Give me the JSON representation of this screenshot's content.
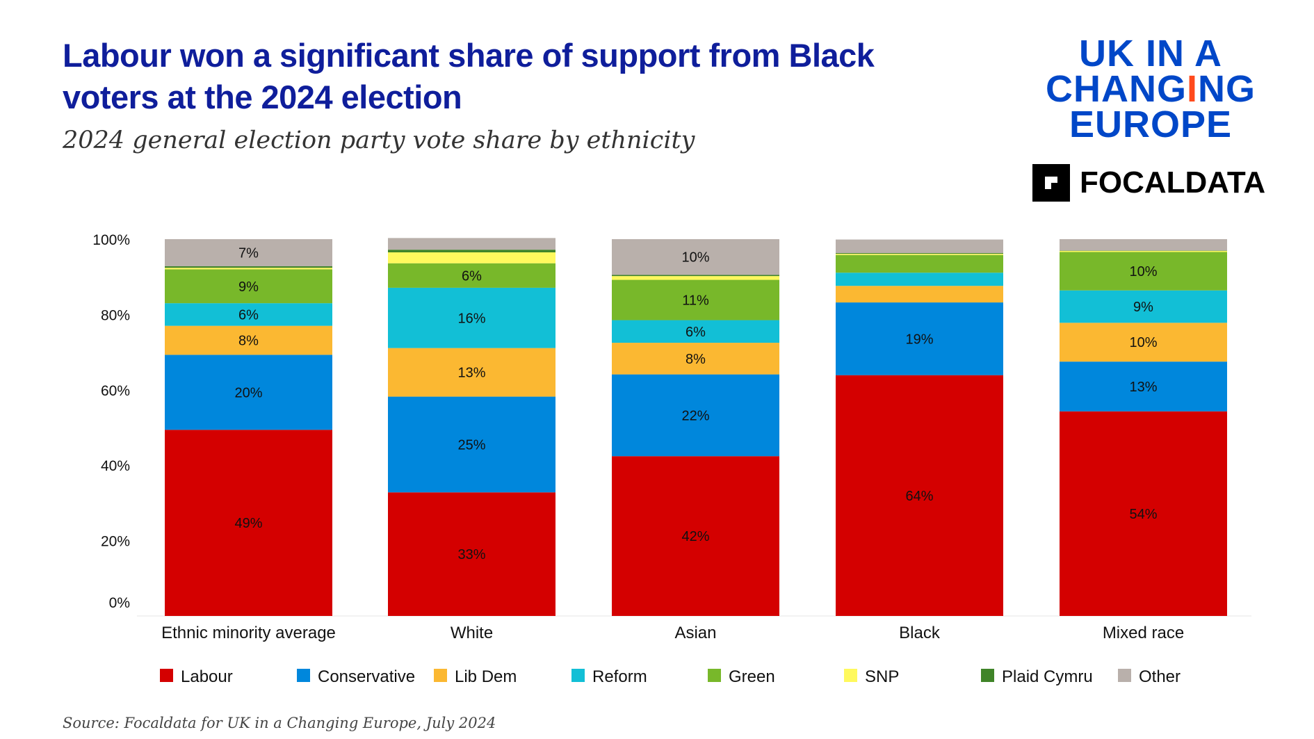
{
  "header": {
    "title": "Labour won a significant share of support from Black voters at the 2024 election",
    "subtitle": "2024 general election party vote share by ethnicity"
  },
  "logos": {
    "ukice": "UK IN A CHANGING EUROPE",
    "focaldata": "FOCALDATA"
  },
  "source": "Source:  Focaldata for UK in a Changing Europe, July 2024",
  "chart_data": {
    "type": "bar",
    "stacked": true,
    "title": "",
    "xlabel": "",
    "ylabel": "",
    "ylim": [
      0,
      100
    ],
    "yticks": [
      "0%",
      "20%",
      "40%",
      "60%",
      "80%",
      "100%"
    ],
    "grid": false,
    "legend_position": "bottom",
    "categories": [
      "Ethnic minority average",
      "White",
      "Asian",
      "Black",
      "Mixed race"
    ],
    "series": [
      {
        "name": "Labour",
        "color": "#d40000",
        "values": [
          49.4,
          32.8,
          42.4,
          63.9,
          54.3
        ],
        "labels": [
          "49%",
          "33%",
          "42%",
          "64%",
          "54%"
        ]
      },
      {
        "name": "Conservative",
        "color": "#0087dc",
        "values": [
          19.9,
          25.4,
          21.7,
          19.3,
          13.2
        ],
        "labels": [
          "20%",
          "25%",
          "22%",
          "19%",
          "13%"
        ]
      },
      {
        "name": "Lib Dem",
        "color": "#fbb832",
        "values": [
          7.7,
          12.9,
          8.4,
          4.4,
          10.3
        ],
        "labels": [
          "8%",
          "13%",
          "8%",
          "",
          "10%"
        ]
      },
      {
        "name": "Reform",
        "color": "#12bfd6",
        "values": [
          6.0,
          16.0,
          6.0,
          3.5,
          8.6
        ],
        "labels": [
          "6%",
          "16%",
          "6%",
          "",
          "9%"
        ]
      },
      {
        "name": "Green",
        "color": "#78b82a",
        "values": [
          9.0,
          6.5,
          10.7,
          4.7,
          10.2
        ],
        "labels": [
          "9%",
          "6%",
          "11%",
          "",
          "10%"
        ]
      },
      {
        "name": "SNP",
        "color": "#fff95d",
        "values": [
          0.4,
          2.9,
          1.0,
          0.3,
          0.3
        ],
        "labels": [
          "",
          "",
          "",
          "",
          ""
        ]
      },
      {
        "name": "Plaid Cymru",
        "color": "#3f8428",
        "values": [
          0.4,
          0.7,
          0.3,
          0.2,
          0.1
        ],
        "labels": [
          "",
          "",
          "",
          "",
          ""
        ]
      },
      {
        "name": "Other",
        "color": "#b9b0ab",
        "values": [
          7.2,
          3.1,
          9.5,
          3.6,
          3.0
        ],
        "labels": [
          "7%",
          "",
          "10%",
          "",
          ""
        ]
      }
    ]
  }
}
